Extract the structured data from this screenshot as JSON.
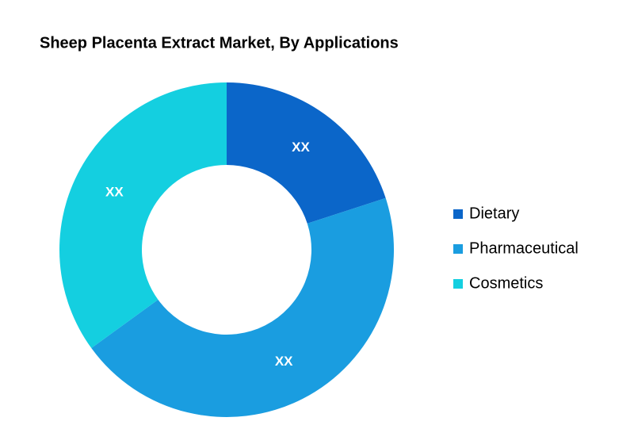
{
  "chart_data": {
    "type": "donut",
    "title": "Sheep Placenta Extract Market, By Applications",
    "categories": [
      "Dietary",
      "Pharmaceutical",
      "Cosmetics"
    ],
    "values": [
      20,
      45,
      35
    ],
    "value_labels": [
      "XX",
      "XX",
      "XX"
    ],
    "colors": [
      "#0b66c9",
      "#1a9de0",
      "#14cfe0"
    ],
    "legend": "right"
  }
}
